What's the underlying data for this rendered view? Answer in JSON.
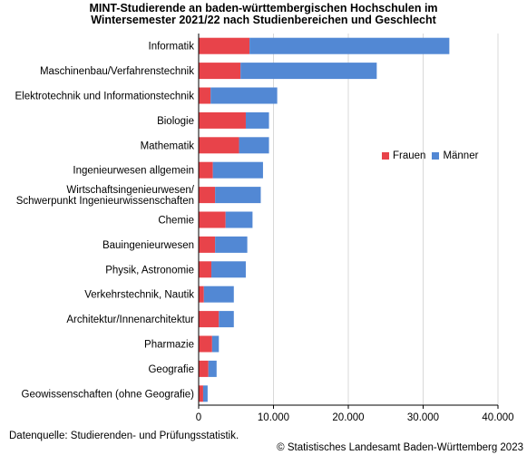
{
  "title_line1": "MINT-Studierende an baden-württembergischen Hochschulen im",
  "title_line2": "Wintersemester 2021/22 nach Studienbereichen und Geschlecht",
  "source": "Datenquelle: Studierenden- und Prüfungsstatistik.",
  "copyright": "© Statistisches Landesamt Baden-Württemberg 2023",
  "colors": {
    "frauen": "#e8434a",
    "maenner": "#5288d4",
    "grid": "#d9d9d9",
    "axis": "#000000"
  },
  "chart_data": {
    "type": "bar",
    "orientation": "horizontal",
    "stacked": true,
    "title": "MINT-Studierende an baden-württembergischen Hochschulen im Wintersemester 2021/22 nach Studienbereichen und Geschlecht",
    "categories": [
      "Informatik",
      "Maschinenbau/Verfahrenstechnik",
      "Elektrotechnik und Informationstechnik",
      "Biologie",
      "Mathematik",
      "Ingenieurwesen allgemein",
      "Wirtschaftsingenieurwesen/\nSchwerpunkt Ingenieurwissenschaften",
      "Chemie",
      "Bauingenieurwesen",
      "Physik, Astronomie",
      "Verkehrstechnik, Nautik",
      "Architektur/Innenarchitektur",
      "Pharmazie",
      "Geografie",
      "Geowissenschaften (ohne Geografie)"
    ],
    "series": [
      {
        "name": "Frauen",
        "color": "#e8434a",
        "values": [
          6800,
          5600,
          1600,
          6300,
          5400,
          1900,
          2200,
          3600,
          2200,
          1700,
          700,
          2700,
          1800,
          1300,
          600
        ]
      },
      {
        "name": "Männer",
        "color": "#5288d4",
        "values": [
          26700,
          18200,
          8900,
          3100,
          4000,
          6700,
          6100,
          3600,
          4300,
          4600,
          4000,
          2000,
          900,
          1100,
          600
        ]
      }
    ],
    "xlim": [
      0,
      40000
    ],
    "xticks": [
      0,
      10000,
      20000,
      30000,
      40000
    ],
    "xtick_labels": [
      "0",
      "10.000",
      "20.000",
      "30.000",
      "40.000"
    ],
    "grid": true,
    "legend_position": "right"
  }
}
